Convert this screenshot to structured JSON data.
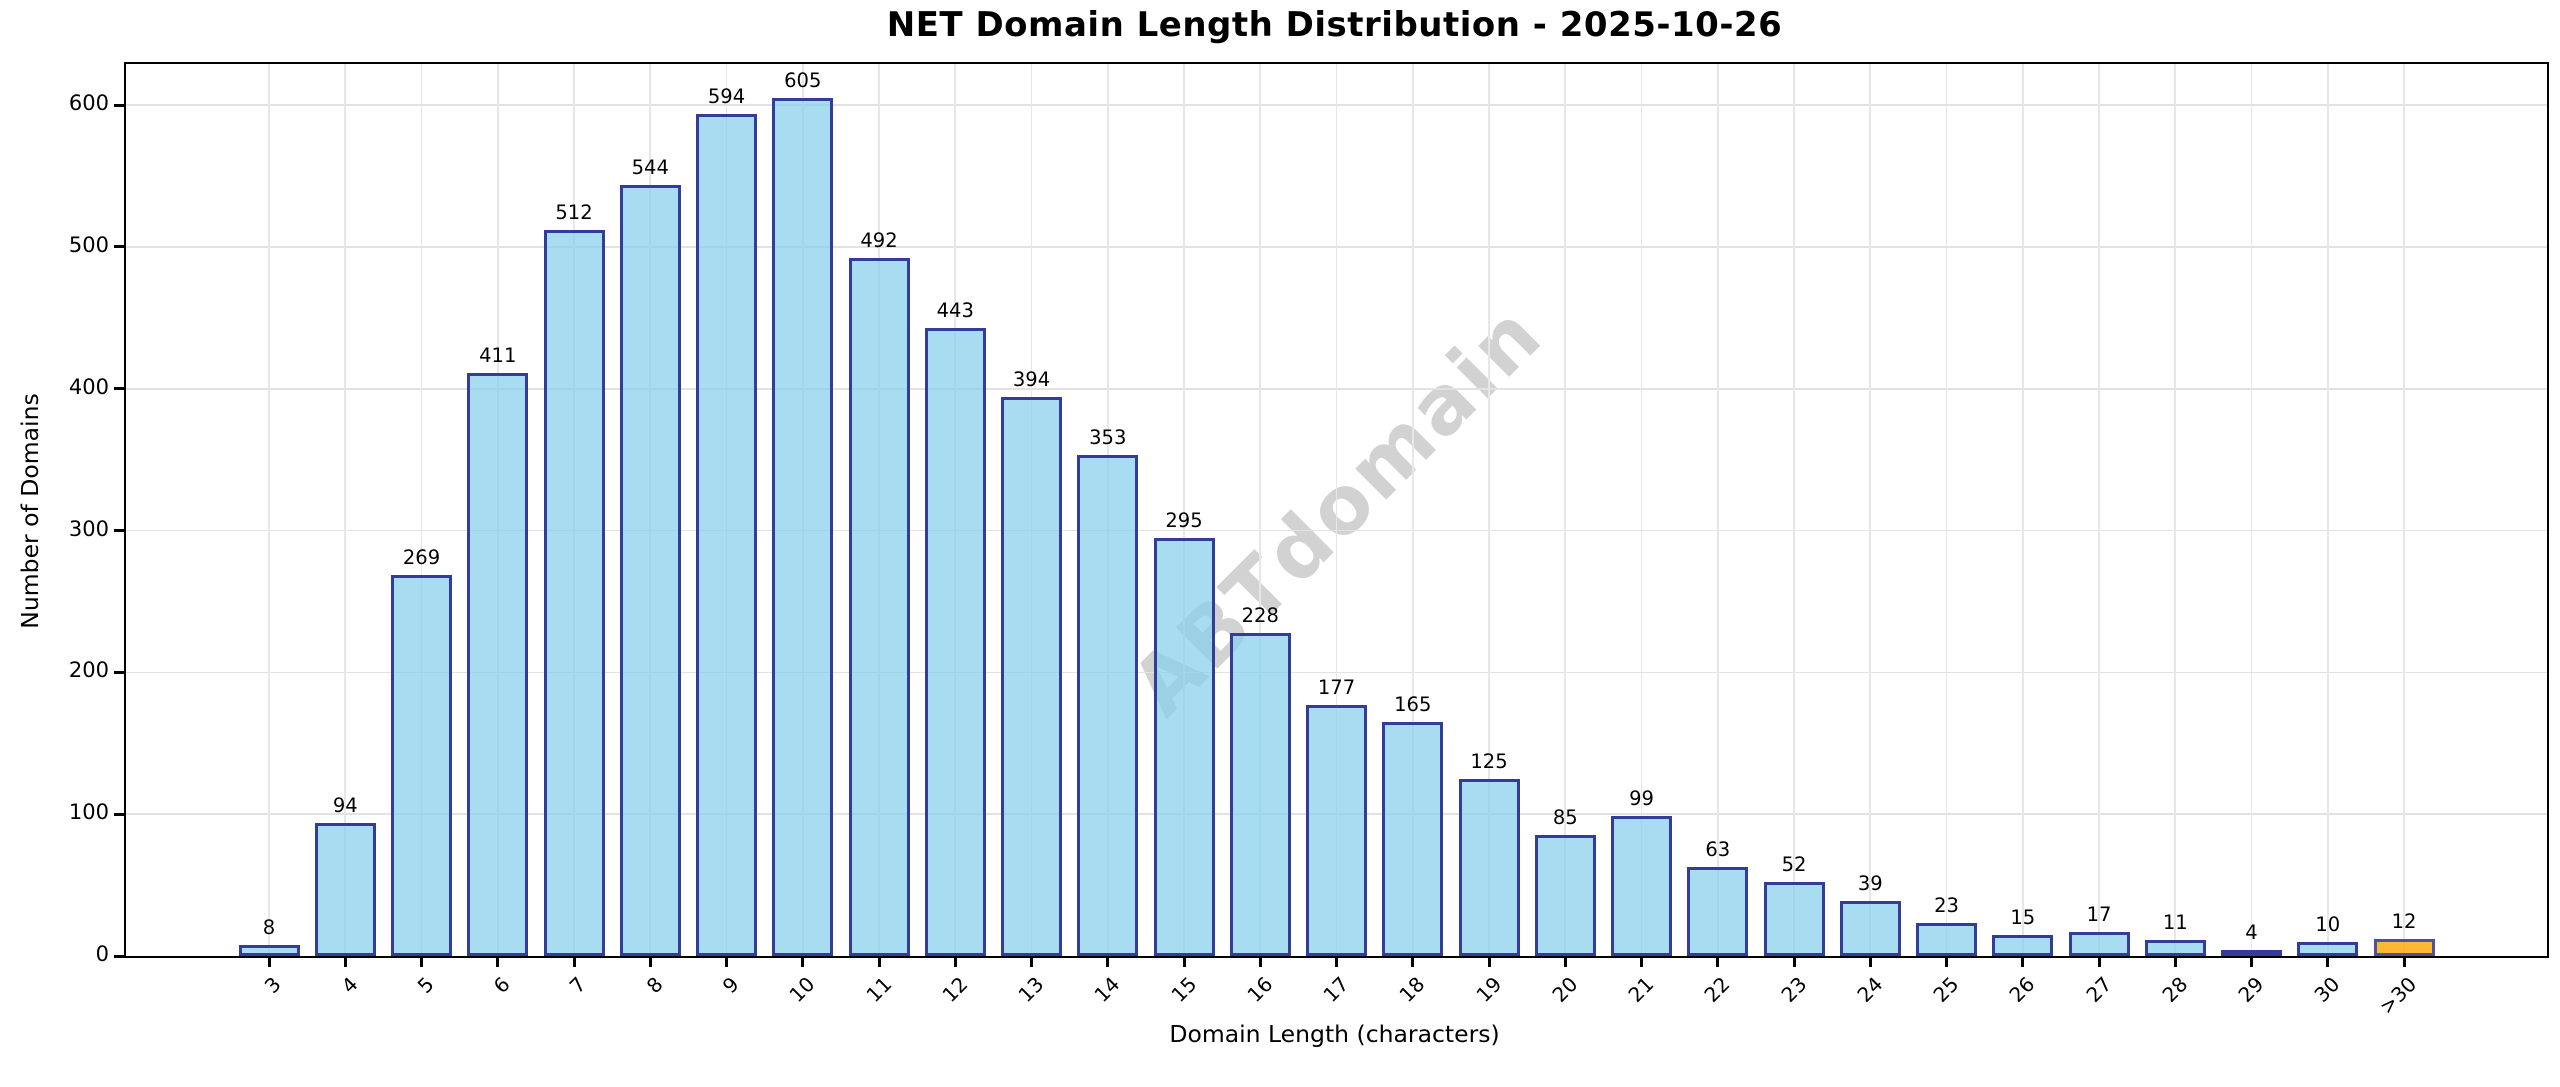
{
  "chart_data": {
    "type": "bar",
    "title": "NET Domain Length Distribution - 2025-10-26",
    "xlabel": "Domain Length (characters)",
    "ylabel": "Number of Domains",
    "watermark": "ABTdomain",
    "categories": [
      "3",
      "4",
      "5",
      "6",
      "7",
      "8",
      "9",
      "10",
      "11",
      "12",
      "13",
      "14",
      "15",
      "16",
      "17",
      "18",
      "19",
      "20",
      "21",
      "22",
      "23",
      "24",
      "25",
      "26",
      "27",
      "28",
      "29",
      "30",
      ">30"
    ],
    "values": [
      8,
      94,
      269,
      411,
      512,
      544,
      594,
      605,
      492,
      443,
      394,
      353,
      295,
      228,
      177,
      165,
      125,
      85,
      99,
      63,
      52,
      39,
      23,
      15,
      17,
      11,
      4,
      10,
      12
    ],
    "highlight_index": 28,
    "yticks": [
      0,
      100,
      200,
      300,
      400,
      500,
      600
    ],
    "ylim": [
      0,
      629
    ],
    "grid": true,
    "legend": "none",
    "colors": {
      "bar_fill": "rgba(135,206,235,0.72)",
      "bar_edge": "#333d99",
      "highlight_fill": "rgba(255,166,0,0.80)",
      "highlight_edge": "#4d51a3",
      "grid": "#e2e2e2",
      "watermark": "#d2d2d2",
      "text": "#000000"
    }
  }
}
